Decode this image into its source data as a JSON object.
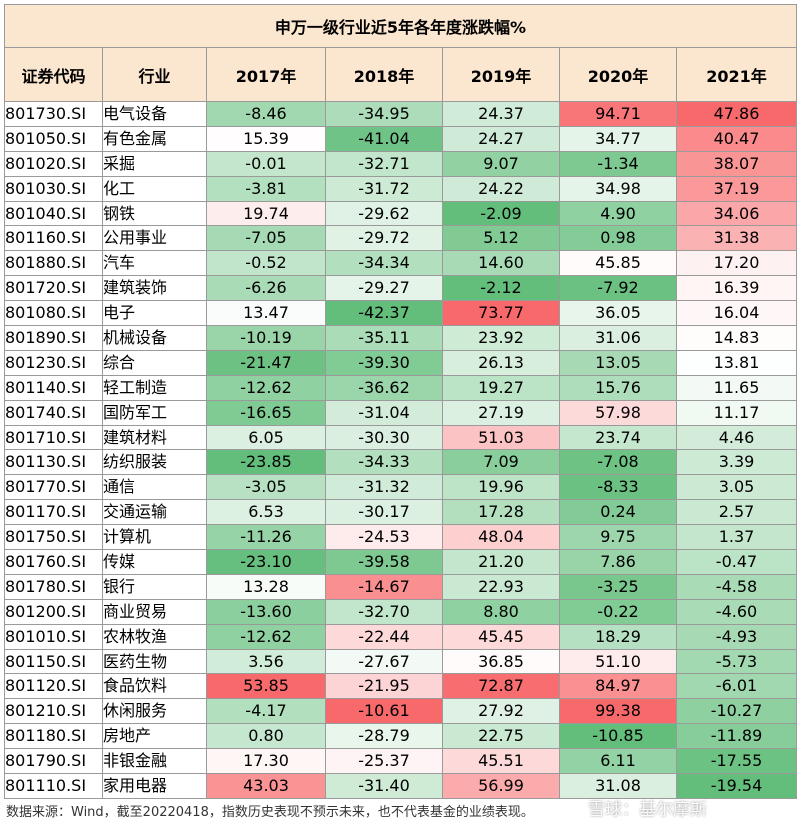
{
  "chart_data": {
    "type": "table",
    "title": "申万一级行业近5年各年度涨跌幅%",
    "columns": [
      "证券代码",
      "行业",
      "2017年",
      "2018年",
      "2019年",
      "2020年",
      "2021年"
    ],
    "rows": [
      {
        "code": "801730.SI",
        "industry": "电气设备",
        "values": [
          -8.46,
          -34.95,
          24.37,
          94.71,
          47.86
        ]
      },
      {
        "code": "801050.SI",
        "industry": "有色金属",
        "values": [
          15.39,
          -41.04,
          24.27,
          34.77,
          40.47
        ]
      },
      {
        "code": "801020.SI",
        "industry": "采掘",
        "values": [
          -0.01,
          -32.71,
          9.07,
          -1.34,
          38.07
        ]
      },
      {
        "code": "801030.SI",
        "industry": "化工",
        "values": [
          -3.81,
          -31.72,
          24.22,
          34.98,
          37.19
        ]
      },
      {
        "code": "801040.SI",
        "industry": "钢铁",
        "values": [
          19.74,
          -29.62,
          -2.09,
          4.9,
          34.06
        ]
      },
      {
        "code": "801160.SI",
        "industry": "公用事业",
        "values": [
          -7.05,
          -29.72,
          5.12,
          0.98,
          31.38
        ]
      },
      {
        "code": "801880.SI",
        "industry": "汽车",
        "values": [
          -0.52,
          -34.34,
          14.6,
          45.85,
          17.2
        ]
      },
      {
        "code": "801720.SI",
        "industry": "建筑装饰",
        "values": [
          -6.26,
          -29.27,
          -2.12,
          -7.92,
          16.39
        ]
      },
      {
        "code": "801080.SI",
        "industry": "电子",
        "values": [
          13.47,
          -42.37,
          73.77,
          36.05,
          16.04
        ]
      },
      {
        "code": "801890.SI",
        "industry": "机械设备",
        "values": [
          -10.19,
          -35.11,
          23.92,
          31.06,
          14.83
        ]
      },
      {
        "code": "801230.SI",
        "industry": "综合",
        "values": [
          -21.47,
          -39.3,
          26.13,
          13.05,
          13.81
        ]
      },
      {
        "code": "801140.SI",
        "industry": "轻工制造",
        "values": [
          -12.62,
          -36.62,
          19.27,
          15.76,
          11.65
        ]
      },
      {
        "code": "801740.SI",
        "industry": "国防军工",
        "values": [
          -16.65,
          -31.04,
          27.19,
          57.98,
          11.17
        ]
      },
      {
        "code": "801710.SI",
        "industry": "建筑材料",
        "values": [
          6.05,
          -30.3,
          51.03,
          23.74,
          4.46
        ]
      },
      {
        "code": "801130.SI",
        "industry": "纺织服装",
        "values": [
          -23.85,
          -34.33,
          7.09,
          -7.08,
          3.39
        ]
      },
      {
        "code": "801770.SI",
        "industry": "通信",
        "values": [
          -3.05,
          -31.32,
          19.96,
          -8.33,
          3.05
        ]
      },
      {
        "code": "801170.SI",
        "industry": "交通运输",
        "values": [
          6.53,
          -30.17,
          17.28,
          0.24,
          2.57
        ]
      },
      {
        "code": "801750.SI",
        "industry": "计算机",
        "values": [
          -11.26,
          -24.53,
          48.04,
          9.75,
          1.37
        ]
      },
      {
        "code": "801760.SI",
        "industry": "传媒",
        "values": [
          -23.1,
          -39.58,
          21.2,
          7.86,
          -0.47
        ]
      },
      {
        "code": "801780.SI",
        "industry": "银行",
        "values": [
          13.28,
          -14.67,
          22.93,
          -3.25,
          -4.58
        ]
      },
      {
        "code": "801200.SI",
        "industry": "商业贸易",
        "values": [
          -13.6,
          -32.7,
          8.8,
          -0.22,
          -4.6
        ]
      },
      {
        "code": "801010.SI",
        "industry": "农林牧渔",
        "values": [
          -12.62,
          -22.44,
          45.45,
          18.29,
          -4.93
        ]
      },
      {
        "code": "801150.SI",
        "industry": "医药生物",
        "values": [
          3.56,
          -27.67,
          36.85,
          51.1,
          -5.73
        ]
      },
      {
        "code": "801120.SI",
        "industry": "食品饮料",
        "values": [
          53.85,
          -21.95,
          72.87,
          84.97,
          -6.01
        ]
      },
      {
        "code": "801210.SI",
        "industry": "休闲服务",
        "values": [
          -4.17,
          -10.61,
          27.92,
          99.38,
          -10.27
        ]
      },
      {
        "code": "801180.SI",
        "industry": "房地产",
        "values": [
          0.8,
          -28.79,
          22.75,
          -10.85,
          -11.89
        ]
      },
      {
        "code": "801790.SI",
        "industry": "非银金融",
        "values": [
          17.3,
          -25.37,
          45.51,
          6.11,
          -17.55
        ]
      },
      {
        "code": "801110.SI",
        "industry": "家用电器",
        "values": [
          43.03,
          -31.4,
          56.99,
          31.08,
          -19.54
        ]
      }
    ],
    "colors": {
      "header_bg": "#fbe6d0",
      "positive_max": "#f8696b",
      "negative_max": "#63be7b",
      "neutral": "#ffffff"
    }
  },
  "footer": "数据来源：Wind，截至20220418，指数历史表现不预示未来，也不代表基金的业绩表现。",
  "watermark": "雪球：基尔摩斯"
}
